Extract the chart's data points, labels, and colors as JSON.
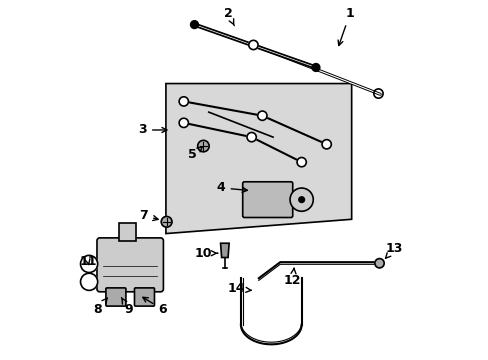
{
  "background_color": "#ffffff",
  "diagram_bg_color": "#d8d8d8",
  "line_color": "#000000",
  "label_fontsize": 9,
  "arrow_color": "#000000"
}
